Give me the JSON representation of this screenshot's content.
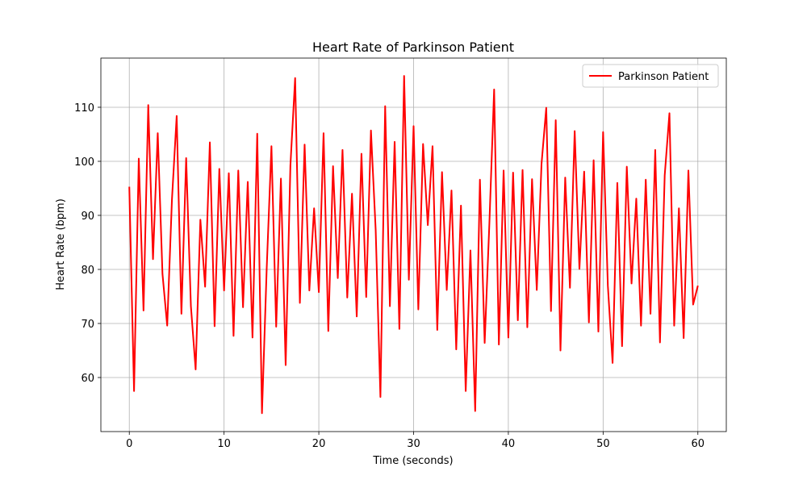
{
  "chart_data": {
    "type": "line",
    "title": "Heart Rate of Parkinson Patient",
    "xlabel": "Time (seconds)",
    "ylabel": "Heart Rate (bpm)",
    "xlim": [
      -3,
      63
    ],
    "ylim": [
      50,
      119.1
    ],
    "xticks": [
      0,
      10,
      20,
      30,
      40,
      50,
      60
    ],
    "yticks": [
      60,
      70,
      80,
      90,
      100,
      110
    ],
    "grid": true,
    "legend": "upper right",
    "x": [
      0,
      0.5,
      1,
      1.5,
      2,
      2.5,
      3,
      3.5,
      4,
      4.5,
      5,
      5.5,
      6,
      6.5,
      7,
      7.5,
      8,
      8.5,
      9,
      9.5,
      10,
      10.5,
      11,
      11.5,
      12,
      12.5,
      13,
      13.5,
      14,
      14.5,
      15,
      15.5,
      16,
      16.5,
      17,
      17.5,
      18,
      18.5,
      19,
      19.5,
      20,
      20.5,
      21,
      21.5,
      22,
      22.5,
      23,
      23.5,
      24,
      24.5,
      25,
      25.5,
      26,
      26.5,
      27,
      27.5,
      28,
      28.5,
      29,
      29.5,
      30,
      30.5,
      31,
      31.5,
      32,
      32.5,
      33,
      33.5,
      34,
      34.5,
      35,
      35.5,
      36,
      36.5,
      37,
      37.5,
      38,
      38.5,
      39,
      39.5,
      40,
      40.5,
      41,
      41.5,
      42,
      42.5,
      43,
      43.5,
      44,
      44.5,
      45,
      45.5,
      46,
      46.5,
      47,
      47.5,
      48,
      48.5,
      49,
      49.5,
      50,
      50.5,
      51,
      51.5,
      52,
      52.5,
      53,
      53.5,
      54,
      54.5,
      55,
      55.5,
      56,
      56.5,
      57,
      57.5,
      58,
      58.5,
      59,
      59.5,
      60
    ],
    "series": [
      {
        "name": "Parkinson Patient",
        "color": "#ff0000",
        "values": [
          95.3,
          57.5,
          100.5,
          72.4,
          110.4,
          81.9,
          105.2,
          79.2,
          69.6,
          92.9,
          108.4,
          71.8,
          100.6,
          73.2,
          61.5,
          89.2,
          76.8,
          103.5,
          69.5,
          98.6,
          76.1,
          97.8,
          67.7,
          98.3,
          73.0,
          96.2,
          67.4,
          105.1,
          53.4,
          80.2,
          102.8,
          69.4,
          96.8,
          62.3,
          99.2,
          115.4,
          73.8,
          103.1,
          76.1,
          91.3,
          75.8,
          105.2,
          68.6,
          99.1,
          78.4,
          102.1,
          74.8,
          94.0,
          71.3,
          101.4,
          74.9,
          105.7,
          87.3,
          56.4,
          110.2,
          73.2,
          103.6,
          69.0,
          115.8,
          78.1,
          106.5,
          72.6,
          103.2,
          88.2,
          102.8,
          68.8,
          98.0,
          76.2,
          94.6,
          65.2,
          91.8,
          57.5,
          83.5,
          53.8,
          96.6,
          66.4,
          88.6,
          113.3,
          66.1,
          98.3,
          67.4,
          97.9,
          70.6,
          98.4,
          69.3,
          96.7,
          76.2,
          99.5,
          109.9,
          72.3,
          107.6,
          65.0,
          97.0,
          76.6,
          105.6,
          80.1,
          98.1,
          70.2,
          100.2,
          68.5,
          105.4,
          77.0,
          62.7,
          96.0,
          65.8,
          99.0,
          77.4,
          93.1,
          69.6,
          96.6,
          71.8,
          102.1,
          66.5,
          97.4,
          108.9,
          69.6,
          91.3,
          67.3,
          98.3,
          73.5,
          77.0
        ]
      }
    ]
  }
}
